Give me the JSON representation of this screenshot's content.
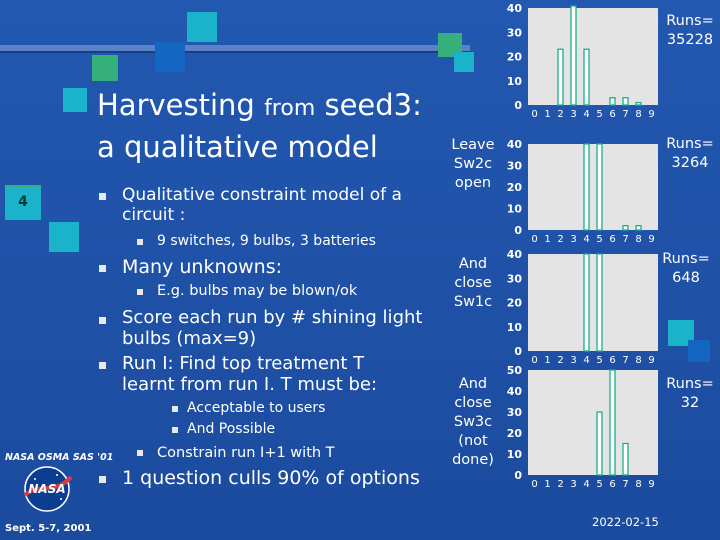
{
  "slide_number": "4",
  "title": {
    "line1_a": "Harvesting",
    "line1_b": "from",
    "line1_c": "seed3:",
    "line2": "a qualitative model"
  },
  "bullets": {
    "b1": "Qualitative constraint model of a circuit :",
    "b1_1": "9 switches, 9 bulbs, 3 batteries",
    "b2": "Many unknowns:",
    "b2_1": "E.g. bulbs may be blown/ok",
    "b3": "Score each run by # shining light bulbs (max=9)",
    "b4": "Run I: Find top treatment T learnt from  run I. T must be:",
    "b4_1": "Acceptable to users",
    "b4_2": "And Possible",
    "b4_3": "Constrain run I+1 with T",
    "b5": "1 question culls 90% of options"
  },
  "footer": {
    "org": "NASA OSMA SAS '01",
    "date_left": "Sept. 5-7, 2001",
    "date_right": "2022-02-15",
    "logo_text": "NASA"
  },
  "charts_text": {
    "c1_runs": "Runs= 35228",
    "c2_side": "Leave Sw2c open",
    "c2_runs": "Runs= 3264",
    "c3_side": "And close Sw1c",
    "c3_runs": "Runs= 648",
    "c4_side": "And close Sw3c (not done)",
    "c4_runs": "Runs= 32"
  },
  "colors": {
    "background": "#1d4fa3",
    "bar_fill": "#ffffff",
    "bar_edge": "#19b08a",
    "panel": "#e4e4e4",
    "square_cyan": "#1ab3c9",
    "square_green": "#35b07a"
  },
  "chart_data": [
    {
      "type": "bar",
      "categories": [
        "0",
        "1",
        "2",
        "3",
        "4",
        "5",
        "6",
        "7",
        "8",
        "9"
      ],
      "values": [
        0,
        0,
        23,
        42,
        23,
        0,
        3,
        3,
        1,
        0
      ],
      "ylim": [
        0,
        40
      ],
      "yticks": [
        0,
        10,
        20,
        30,
        40
      ]
    },
    {
      "type": "bar",
      "categories": [
        "0",
        "1",
        "2",
        "3",
        "4",
        "5",
        "6",
        "7",
        "8",
        "9"
      ],
      "values": [
        0,
        0,
        0,
        0,
        40,
        40,
        0,
        2,
        2,
        0
      ],
      "ylim": [
        0,
        40
      ],
      "yticks": [
        0,
        10,
        20,
        30,
        40
      ]
    },
    {
      "type": "bar",
      "categories": [
        "0",
        "1",
        "2",
        "3",
        "4",
        "5",
        "6",
        "7",
        "8",
        "9"
      ],
      "values": [
        0,
        0,
        0,
        0,
        40,
        40,
        0,
        0,
        0,
        0
      ],
      "ylim": [
        0,
        40
      ],
      "yticks": [
        0,
        10,
        20,
        30,
        40
      ]
    },
    {
      "type": "bar",
      "categories": [
        "0",
        "1",
        "2",
        "3",
        "4",
        "5",
        "6",
        "7",
        "8",
        "9"
      ],
      "values": [
        0,
        0,
        0,
        0,
        0,
        30,
        50,
        15,
        0,
        0
      ],
      "ylim": [
        0,
        50
      ],
      "yticks": [
        0,
        10,
        20,
        30,
        40,
        50
      ]
    }
  ]
}
